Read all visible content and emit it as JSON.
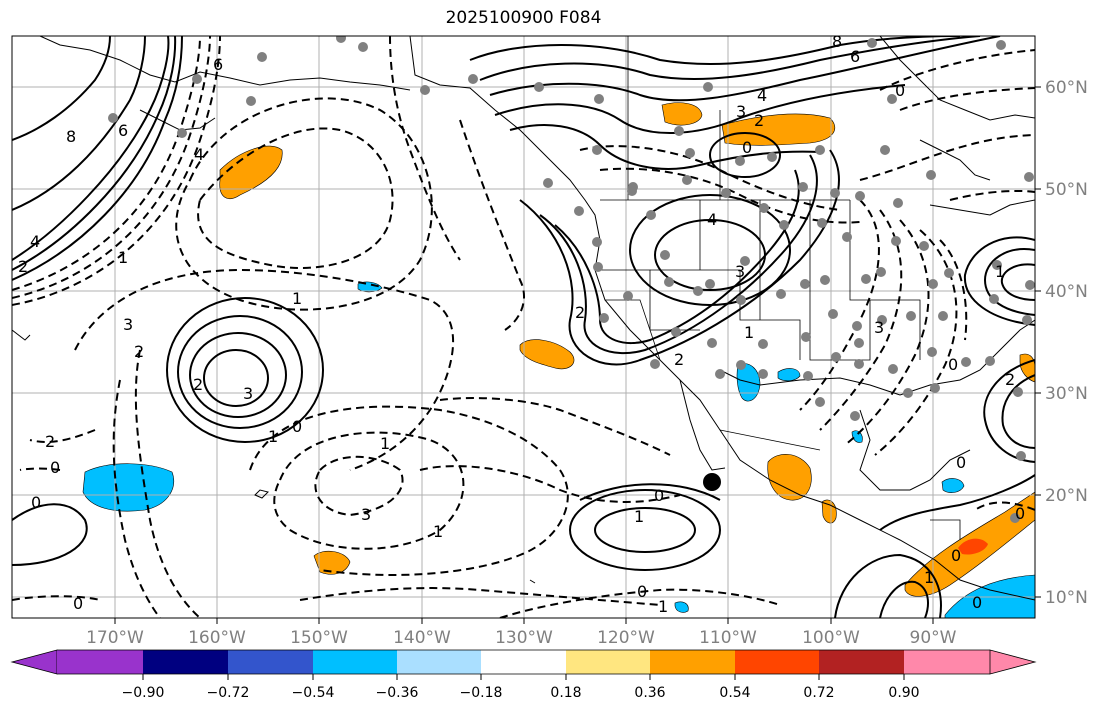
{
  "title": "2025100900 F084",
  "map": {
    "lon_labels": [
      "170°W",
      "160°W",
      "150°W",
      "140°W",
      "130°W",
      "120°W",
      "110°W",
      "100°W",
      "90°W"
    ],
    "lat_labels": [
      "60°N",
      "50°N",
      "40°N",
      "30°N",
      "20°N",
      "10°N"
    ],
    "contour_labels": [
      "8",
      "6",
      "4",
      "2",
      "1",
      "6",
      "4",
      "8",
      "6",
      "4",
      "3",
      "2",
      "0",
      "4",
      "3",
      "3",
      "2",
      "1",
      "3",
      "2",
      "1",
      "1",
      "0",
      "0",
      "2",
      "3",
      "1",
      "0",
      "2",
      "1",
      "2",
      "0",
      "0",
      "0",
      "1",
      "0",
      "1",
      "0",
      "0",
      "0",
      "1",
      "1",
      "0",
      "2",
      "3",
      "0"
    ],
    "colors": {
      "land_outline": "#000000",
      "grid": "#b0b0b0",
      "positive_fill": "#ffa000",
      "strong_positive_fill": "#ff4500",
      "negative_fill": "#00bfff",
      "station_dot": "#808080",
      "marker": "#000000"
    }
  },
  "colorbar": {
    "ticks": [
      "−0.90",
      "−0.72",
      "−0.54",
      "−0.36",
      "−0.18",
      "0.18",
      "0.36",
      "0.54",
      "0.72",
      "0.90"
    ],
    "colors": [
      "#9933cc",
      "#000080",
      "#3355cc",
      "#00bfff",
      "#aadfff",
      "#ffffff",
      "#ffe680",
      "#ffa000",
      "#ff4500",
      "#b22222",
      "#ff88aa"
    ]
  }
}
